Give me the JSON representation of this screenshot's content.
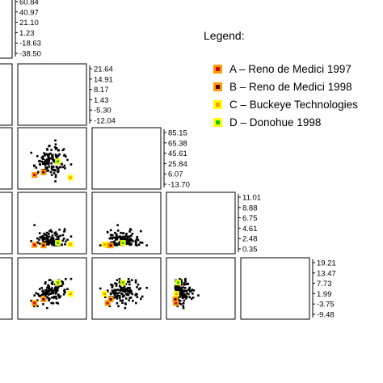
{
  "chart_data": {
    "type": "scatter",
    "layout": "scatterplot-matrix-lower-triangle",
    "grid": false,
    "legend": {
      "title": "Legend:",
      "placement": "top-right",
      "entries": [
        {
          "text": "A – Reno de Medici 1997",
          "fill": "#ff9900",
          "mark": "#cc0000"
        },
        {
          "text": "B – Reno de Medici 1998",
          "fill": "#ff9900",
          "mark": "#550000"
        },
        {
          "text": "C – Buckeye Technologies",
          "fill": "#ffff00",
          "mark": "#ff9900"
        },
        {
          "text": "D – Donohue 1998",
          "fill": "#ffff00",
          "mark": "#00cc00"
        }
      ]
    },
    "variables": [
      {
        "range": [
          -38.5,
          60.84
        ],
        "ticks": [
          "60.84",
          "40.97",
          "21.10",
          "1.23",
          "-18.63",
          "-38.50"
        ]
      },
      {
        "range": [
          -12.04,
          21.64
        ],
        "ticks": [
          "21.64",
          "14.91",
          "8.17",
          "1.43",
          "-5.30",
          "-12.04"
        ]
      },
      {
        "range": [
          -13.7,
          85.15
        ],
        "ticks": [
          "85.15",
          "65.38",
          "45.61",
          "25.84",
          "6.07",
          "-13.70"
        ]
      },
      {
        "range": [
          0.35,
          11.01
        ],
        "ticks": [
          "11.01",
          "8.88",
          "6.75",
          "4.61",
          "2.48",
          "0.35"
        ]
      },
      {
        "range": [
          -9.48,
          19.21
        ],
        "ticks": [
          "19.21",
          "13.47",
          "7.73",
          "1.99",
          "-3.75",
          "-9.48"
        ]
      }
    ],
    "colors": {
      "points": "#000000",
      "frame": "#000000"
    },
    "point_count": 130,
    "highlighted": [
      [
        -10,
        -5,
        5,
        1.3,
        -3
      ],
      [
        0,
        0,
        10,
        1.2,
        -1
      ],
      [
        40,
        15,
        0,
        1.4,
        2
      ],
      [
        25,
        8,
        30,
        1.7,
        8
      ]
    ]
  }
}
